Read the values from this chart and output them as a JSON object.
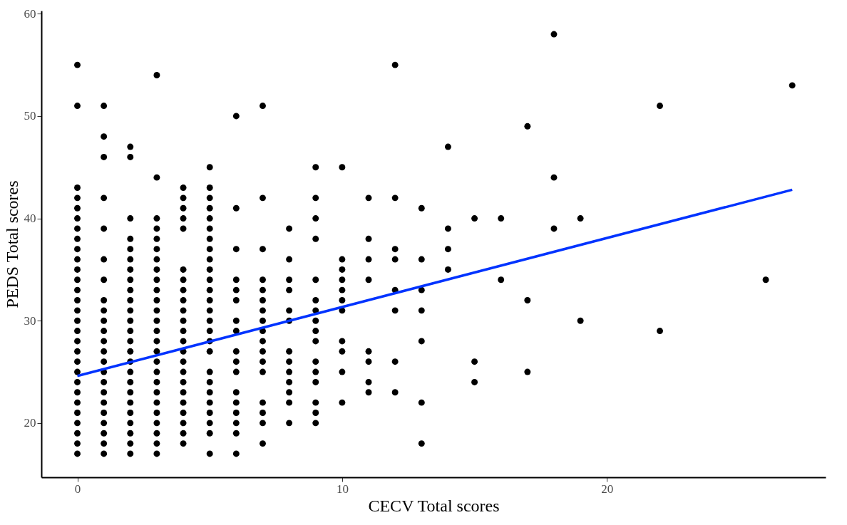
{
  "chart_data": {
    "type": "scatter",
    "xlabel": "CECV Total scores",
    "ylabel": "PEDS Total scores",
    "xlim": [
      -1.36,
      28.26
    ],
    "ylim": [
      14.7,
      60.3
    ],
    "xticks": [
      0,
      10,
      20
    ],
    "yticks": [
      20,
      30,
      40,
      50,
      60
    ],
    "grid": false,
    "series": [
      {
        "type": "scatter",
        "color": "#000000",
        "marker": "circle",
        "x": [
          0,
          0,
          0,
          0,
          0,
          0,
          0,
          0,
          0,
          0,
          0,
          0,
          0,
          0,
          0,
          0,
          0,
          0,
          0,
          0,
          0,
          0,
          0,
          0,
          0,
          0,
          0,
          0,
          0,
          1,
          1,
          1,
          1,
          1,
          1,
          1,
          1,
          1,
          1,
          1,
          1,
          1,
          1,
          1,
          1,
          1,
          1,
          1,
          1,
          1,
          1,
          1,
          2,
          2,
          2,
          2,
          2,
          2,
          2,
          2,
          2,
          2,
          2,
          2,
          2,
          2,
          2,
          2,
          2,
          2,
          2,
          2,
          2,
          2,
          2,
          2,
          2,
          3,
          3,
          3,
          3,
          3,
          3,
          3,
          3,
          3,
          3,
          3,
          3,
          3,
          3,
          3,
          3,
          3,
          3,
          3,
          3,
          3,
          3,
          3,
          3,
          3,
          3,
          4,
          4,
          4,
          4,
          4,
          4,
          4,
          4,
          4,
          4,
          4,
          4,
          4,
          4,
          4,
          4,
          4,
          4,
          4,
          4,
          4,
          4,
          4,
          5,
          5,
          5,
          5,
          5,
          5,
          5,
          5,
          5,
          5,
          5,
          5,
          5,
          5,
          5,
          5,
          5,
          5,
          5,
          5,
          5,
          5,
          5,
          5,
          5,
          5,
          6,
          6,
          6,
          6,
          6,
          6,
          6,
          6,
          6,
          6,
          6,
          6,
          6,
          6,
          6,
          6,
          6,
          7,
          7,
          7,
          7,
          7,
          7,
          7,
          7,
          7,
          7,
          7,
          7,
          7,
          7,
          7,
          7,
          7,
          8,
          8,
          8,
          8,
          8,
          8,
          8,
          8,
          8,
          8,
          8,
          8,
          8,
          9,
          9,
          9,
          9,
          9,
          9,
          9,
          9,
          9,
          9,
          9,
          9,
          9,
          9,
          9,
          9,
          10,
          10,
          10,
          10,
          10,
          10,
          10,
          10,
          10,
          10,
          10,
          11,
          11,
          11,
          11,
          11,
          11,
          11,
          11,
          12,
          12,
          12,
          12,
          12,
          12,
          12,
          12,
          13,
          13,
          13,
          13,
          13,
          13,
          13,
          14,
          14,
          14,
          14,
          15,
          15,
          15,
          16,
          16,
          17,
          17,
          17,
          18,
          18,
          18,
          19,
          19,
          22,
          22,
          26,
          27
        ],
        "values": [
          55,
          51,
          43,
          42,
          41,
          40,
          39,
          38,
          37,
          36,
          35,
          34,
          33,
          32,
          31,
          30,
          29,
          28,
          27,
          26,
          25,
          24,
          23,
          22,
          21,
          20,
          19,
          18,
          17,
          51,
          48,
          46,
          42,
          39,
          36,
          34,
          32,
          31,
          30,
          29,
          28,
          27,
          26,
          25,
          24,
          23,
          22,
          21,
          20,
          19,
          18,
          17,
          47,
          46,
          40,
          38,
          37,
          36,
          35,
          34,
          33,
          32,
          31,
          30,
          29,
          28,
          27,
          26,
          25,
          24,
          23,
          22,
          21,
          20,
          19,
          18,
          17,
          54,
          44,
          40,
          39,
          38,
          37,
          36,
          35,
          34,
          33,
          32,
          31,
          30,
          29,
          28,
          27,
          26,
          25,
          24,
          23,
          22,
          21,
          20,
          19,
          18,
          17,
          43,
          42,
          41,
          40,
          39,
          35,
          34,
          33,
          32,
          31,
          30,
          29,
          28,
          27,
          26,
          25,
          24,
          23,
          22,
          21,
          20,
          19,
          18,
          45,
          43,
          42,
          41,
          40,
          39,
          38,
          37,
          36,
          35,
          34,
          33,
          32,
          31,
          30,
          29,
          28,
          27,
          25,
          24,
          23,
          22,
          21,
          20,
          19,
          17,
          50,
          41,
          37,
          34,
          33,
          32,
          30,
          29,
          27,
          26,
          25,
          23,
          22,
          21,
          20,
          19,
          17,
          51,
          42,
          37,
          34,
          33,
          32,
          31,
          30,
          29,
          28,
          27,
          26,
          25,
          22,
          21,
          20,
          18,
          39,
          36,
          34,
          33,
          31,
          30,
          27,
          26,
          25,
          24,
          23,
          22,
          20,
          45,
          42,
          40,
          38,
          34,
          32,
          31,
          30,
          29,
          28,
          26,
          25,
          24,
          22,
          21,
          20,
          45,
          36,
          35,
          34,
          33,
          32,
          31,
          28,
          27,
          25,
          22,
          42,
          38,
          36,
          34,
          27,
          26,
          24,
          23,
          55,
          42,
          37,
          36,
          33,
          31,
          26,
          23,
          41,
          36,
          33,
          31,
          28,
          22,
          18,
          47,
          39,
          37,
          35,
          40,
          26,
          24,
          40,
          34,
          49,
          32,
          25,
          58,
          44,
          39,
          40,
          30,
          51,
          29,
          34,
          53
        ]
      },
      {
        "type": "line",
        "color": "#0033ff",
        "marker": "none",
        "x": [
          0,
          27
        ],
        "values": [
          24.6,
          42.8
        ]
      }
    ]
  }
}
